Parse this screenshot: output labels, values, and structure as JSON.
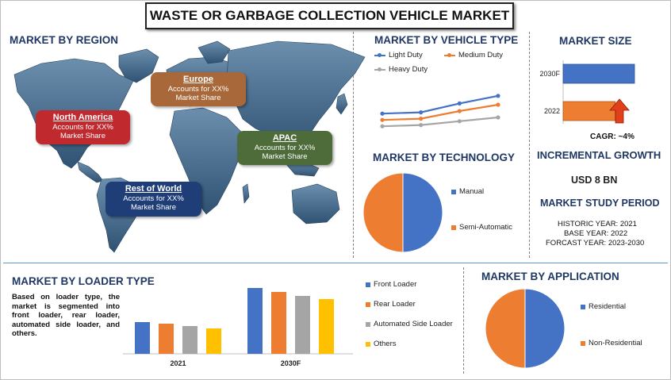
{
  "title": "WASTE OR GARBAGE COLLECTION VEHICLE MARKET",
  "colors": {
    "blue": "#4472c4",
    "orange": "#ed7d31",
    "gray": "#a5a5a5",
    "yellow": "#ffc000",
    "heading": "#1f3864"
  },
  "region": {
    "heading": "MARKET BY REGION",
    "boxes": [
      {
        "name": "Europe",
        "line1": "Accounts for XX%",
        "line2": "Market Share",
        "color": "#a9683a"
      },
      {
        "name": "North America",
        "line1": "Accounts for XX%",
        "line2": "Market Share",
        "color": "#c0292e"
      },
      {
        "name": "APAC",
        "line1": "Accounts for XX%",
        "line2": "Market Share",
        "color": "#4e6b3a"
      },
      {
        "name": "Rest of World",
        "line1": "Accounts for XX%",
        "line2": "Market Share",
        "color": "#1f3e78"
      }
    ]
  },
  "vehicle_type": {
    "heading": "MARKET BY VEHICLE TYPE"
  },
  "technology": {
    "heading": "MARKET BY TECHNOLOGY"
  },
  "market_size": {
    "heading": "MARKET SIZE",
    "cagr": "CAGR:  ~4%",
    "incremental_heading": "INCREMENTAL GROWTH",
    "incremental_value": "USD 8 BN",
    "study_heading": "MARKET STUDY PERIOD",
    "historic": "HISTORIC YEAR: 2021",
    "base": "BASE YEAR: 2022",
    "forecast": "FORCAST YEAR: 2023-2030"
  },
  "loader": {
    "heading": "MARKET BY LOADER TYPE",
    "description": "Based on loader type, the market is segmented into front loader, rear loader, automated side loader, and others."
  },
  "application": {
    "heading": "MARKET BY APPLICATION"
  },
  "chart_data": [
    {
      "id": "vehicle_type",
      "type": "line",
      "x": [
        1,
        2,
        3,
        4
      ],
      "series": [
        {
          "name": "Light Duty",
          "values": [
            4.6,
            4.8,
            6.2,
            7.4
          ],
          "color": "#4472c4"
        },
        {
          "name": "Medium Duty",
          "values": [
            3.6,
            3.8,
            5.0,
            6.0
          ],
          "color": "#ed7d31"
        },
        {
          "name": "Heavy Duty",
          "values": [
            2.6,
            2.8,
            3.4,
            4.0
          ],
          "color": "#a5a5a5"
        }
      ],
      "ylim": [
        0,
        10
      ],
      "legend": "top",
      "grid": false
    },
    {
      "id": "technology",
      "type": "pie",
      "labels": [
        "Manual",
        "Semi-Automatic"
      ],
      "values": [
        50,
        50
      ],
      "colors": [
        "#4472c4",
        "#ed7d31"
      ],
      "legend": "right"
    },
    {
      "id": "market_size",
      "type": "bar",
      "orientation": "horizontal",
      "categories": [
        "2030F",
        "2022"
      ],
      "values": [
        100,
        73
      ],
      "colors": [
        "#4472c4",
        "#ed7d31"
      ],
      "xlim": [
        0,
        100
      ]
    },
    {
      "id": "loader_type",
      "type": "bar",
      "categories": [
        "2021",
        "2030F"
      ],
      "series": [
        {
          "name": "Front Loader",
          "values": [
            40,
            83
          ],
          "color": "#4472c4"
        },
        {
          "name": "Rear Loader",
          "values": [
            38,
            78
          ],
          "color": "#ed7d31"
        },
        {
          "name": "Automated Side Loader",
          "values": [
            35,
            73
          ],
          "color": "#a5a5a5"
        },
        {
          "name": "Others",
          "values": [
            32,
            69
          ],
          "color": "#ffc000"
        }
      ],
      "ylim": [
        0,
        90
      ],
      "legend": "right"
    },
    {
      "id": "application",
      "type": "pie",
      "labels": [
        "Residential",
        "Non-Residential"
      ],
      "values": [
        50,
        50
      ],
      "colors": [
        "#4472c4",
        "#ed7d31"
      ],
      "legend": "right"
    }
  ]
}
